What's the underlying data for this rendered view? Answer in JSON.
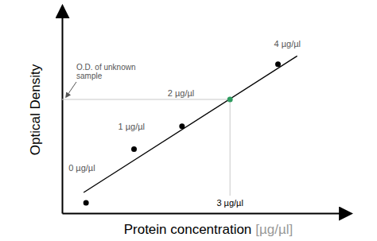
{
  "chart_data": {
    "type": "scatter",
    "y_label": "Optical Density",
    "x_label": "Protein concentration",
    "x_label_unit": "[µg/µl]",
    "xlim": [
      -0.5,
      5.5
    ],
    "ylim": [
      0,
      1
    ],
    "tick_labels": false,
    "series": [
      {
        "type": "scatter",
        "color": "#000000",
        "marker": "circle",
        "x": [
          0,
          1,
          2,
          4
        ],
        "values": [
          0.05,
          0.31,
          0.42,
          0.72
        ],
        "labels": [
          "0 µg/µl",
          "1 µg/µl",
          "2 µg/µl",
          "4 µg/µl"
        ]
      },
      {
        "type": "line",
        "color": "#000000",
        "line_style": "solid",
        "x": [
          -0.05,
          4.4
        ],
        "values": [
          0.1,
          0.76
        ]
      }
    ],
    "unknown": {
      "x": 3,
      "y": 0.55,
      "label": "3 µg/µl",
      "color": "#2e9b5f"
    },
    "annotation": [
      "O.D. of unknown",
      "sample"
    ]
  }
}
